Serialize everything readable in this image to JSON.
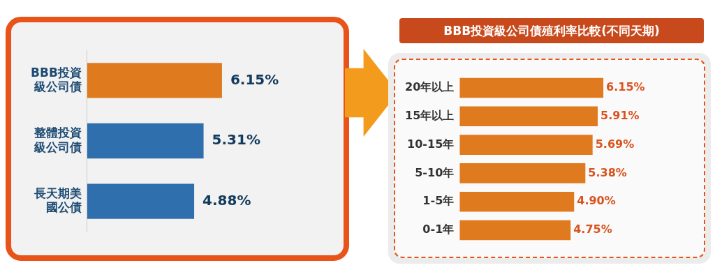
{
  "chart_data": [
    {
      "type": "bar",
      "orientation": "horizontal",
      "categories": [
        "BBB投資級公司債",
        "整體投資級公司債",
        "長天期美國公債"
      ],
      "values": [
        6.15,
        5.31,
        4.88
      ],
      "colors": [
        "#e07a1f",
        "#2f6fae",
        "#2f6fae"
      ],
      "value_labels": [
        "6.15%",
        "5.31%",
        "4.88%"
      ]
    },
    {
      "type": "bar",
      "orientation": "horizontal",
      "title": "BBB投資級公司債殖利率比較(不同天期)",
      "categories": [
        "20年以上",
        "15年以上",
        "10-15年",
        "5-10年",
        "1-5年",
        "0-1年"
      ],
      "values": [
        6.15,
        5.91,
        5.69,
        5.38,
        4.9,
        4.75
      ],
      "color": "#e07a1f",
      "value_labels": [
        "6.15%",
        "5.91%",
        "5.69%",
        "5.38%",
        "4.90%",
        "4.75%"
      ]
    }
  ]
}
